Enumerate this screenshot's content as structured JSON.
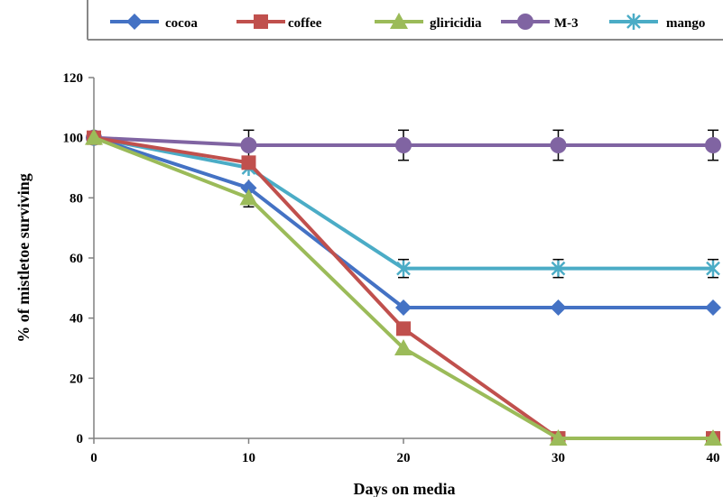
{
  "chart_data": {
    "type": "line",
    "xlabel": "Days on media",
    "ylabel": "% of mistletoe surviving",
    "xlim": [
      0,
      40
    ],
    "ylim": [
      0,
      120
    ],
    "x_ticks": [
      "0",
      "10",
      "20",
      "30",
      "40"
    ],
    "y_ticks": [
      "0",
      "20",
      "40",
      "60",
      "80",
      "100",
      "120"
    ],
    "x": [
      0,
      10,
      20,
      30,
      40
    ],
    "grid": false,
    "legend_position": "top",
    "series": [
      {
        "name": "cocoa",
        "values": [
          100,
          83.3,
          43.5,
          43.5,
          43.5
        ],
        "color": "#4472C4",
        "marker": "diamond"
      },
      {
        "name": "coffee",
        "values": [
          100,
          91.7,
          36.5,
          0,
          0
        ],
        "color": "#C0504D",
        "marker": "square"
      },
      {
        "name": "gliricidia",
        "values": [
          100,
          80,
          30,
          0,
          0
        ],
        "color": "#9BBB59",
        "marker": "triangle"
      },
      {
        "name": "M-3",
        "values": [
          100,
          97.5,
          97.5,
          97.5,
          97.5
        ],
        "color": "#8064A2",
        "marker": "circle",
        "error": [
          0,
          5,
          5,
          5,
          5
        ]
      },
      {
        "name": "mango",
        "values": [
          100,
          90,
          56.5,
          56.5,
          56.5
        ],
        "color": "#4BACC6",
        "marker": "asterisk",
        "error": [
          0,
          0,
          3,
          3,
          3
        ]
      }
    ]
  }
}
